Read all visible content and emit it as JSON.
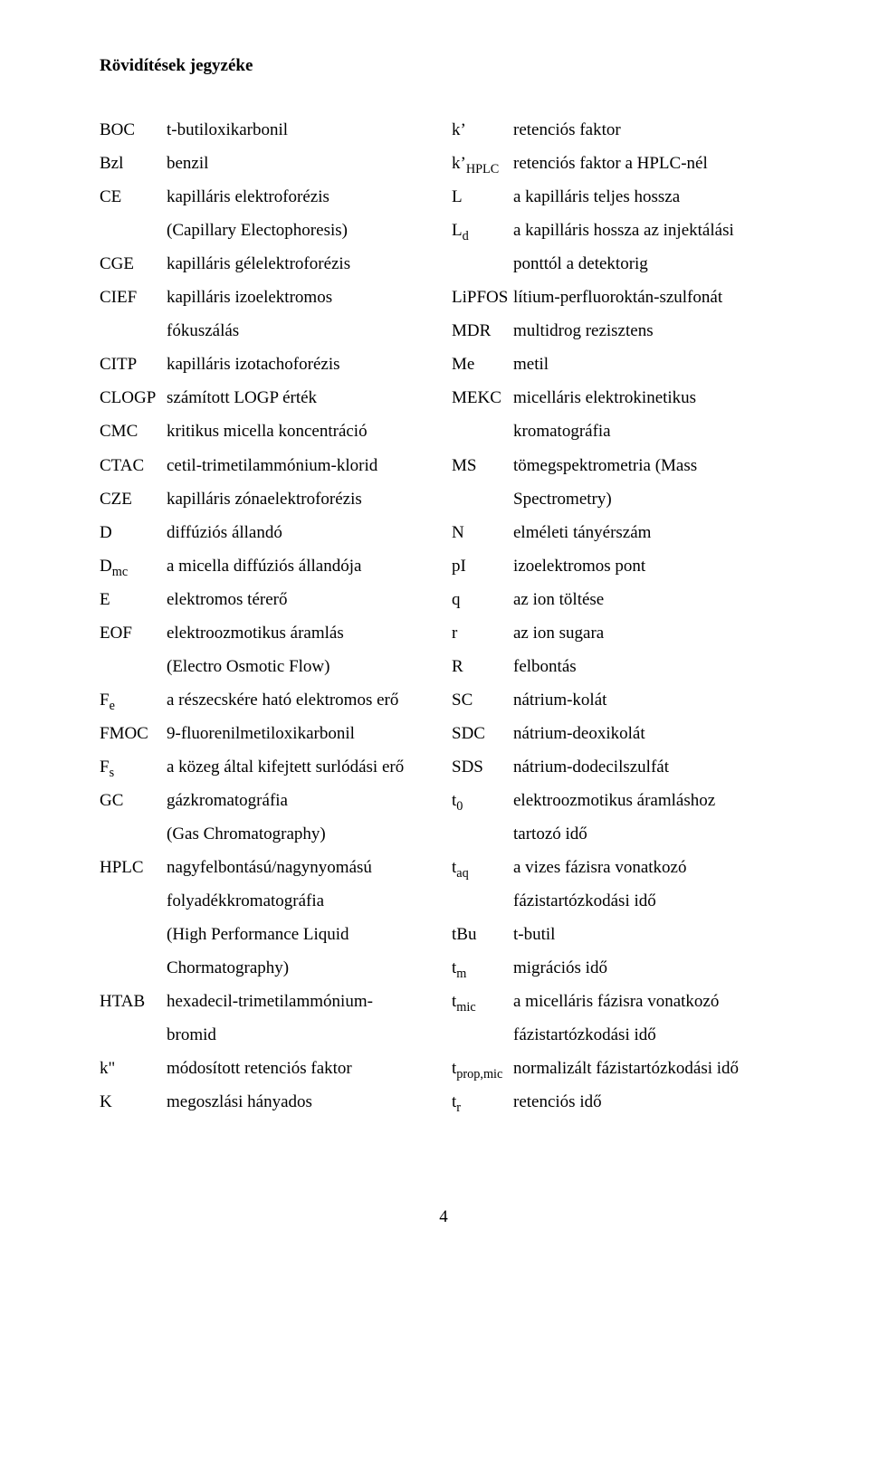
{
  "title": "Rövidítések jegyzéke",
  "page_number": "4",
  "left": {
    "r1_a": "BOC",
    "r1_d": "t-butiloxikarbonil",
    "r2_a": "Bzl",
    "r2_d": "benzil",
    "r3_a": "CE",
    "r3_d": "kapilláris elektroforézis",
    "r4_d": "(Capillary Electophoresis)",
    "r5_a": "CGE",
    "r5_d": "kapilláris gélelektroforézis",
    "r6_a": "CIEF",
    "r6_d": "kapilláris izoelektromos",
    "r7_d": "fókuszálás",
    "r8_a": "CITP",
    "r8_d": "kapilláris izotachoforézis",
    "r9_a": "CLOGP",
    "r9_d": "számított LOGP érték",
    "r10_a": "CMC",
    "r10_d": "kritikus micella koncentráció",
    "r11_a": "CTAC",
    "r11_d": "cetil-trimetilammónium-klorid",
    "r12_a": "CZE",
    "r12_d": "kapilláris zónaelektroforézis",
    "r13_a": "D",
    "r13_d": "diffúziós állandó",
    "r14_a_pre": "D",
    "r14_a_sub": "mc",
    "r14_d": "a micella diffúziós állandója",
    "r15_a": "E",
    "r15_d": "elektromos térerő",
    "r16_a": "EOF",
    "r16_d": "elektroozmotikus áramlás",
    "r17_d": "(Electro Osmotic Flow)",
    "r18_a_pre": "F",
    "r18_a_sub": "e",
    "r18_d": "a részecskére ható elektromos erő",
    "r19_a": "FMOC",
    "r19_d": "9-fluorenilmetiloxikarbonil",
    "r20_a_pre": "F",
    "r20_a_sub": "s",
    "r20_d": "a közeg által kifejtett surlódási erő",
    "r21_a": "GC",
    "r21_d": "gázkromatográfia",
    "r22_d": "(Gas Chromatography)",
    "r23_a": "HPLC",
    "r23_d": "nagyfelbontású/nagynyomású",
    "r24_d": "folyadékkromatográfia",
    "r25_d": "(High Performance Liquid",
    "r26_d": "Chormatography)",
    "r27_a": "HTAB",
    "r27_d": "hexadecil-trimetilammónium-",
    "r28_d": "bromid",
    "r29_a": "k\"",
    "r29_d": "módosított retenciós faktor",
    "r30_a": "K",
    "r30_d": "megoszlási hányados"
  },
  "right": {
    "r1_a": "k’",
    "r1_d": "retenciós faktor",
    "r2_a_pre": "k’",
    "r2_a_sub": "HPLC",
    "r2_d": "retenciós faktor a HPLC-nél",
    "r3_a": "L",
    "r3_d": "a kapilláris teljes hossza",
    "r4_a_pre": "L",
    "r4_a_sub": "d",
    "r4_d": "a kapilláris hossza az injektálási",
    "r5_d": "ponttól a detektorig",
    "r6_a": "LiPFOS",
    "r6_d": "lítium-perfluoroktán-szulfonát",
    "r7_a": "MDR",
    "r7_d": "multidrog rezisztens",
    "r8_a": "Me",
    "r8_d": "metil",
    "r9_a": "MEKC",
    "r9_d": "micelláris elektrokinetikus",
    "r10_d": "kromatográfia",
    "r11_a": "MS",
    "r11_d": "tömegspektrometria (Mass",
    "r12_d": "Spectrometry)",
    "r13_a": "N",
    "r13_d": "elméleti tányérszám",
    "r14_a": "pI",
    "r14_d": "izoelektromos pont",
    "r15_a": "q",
    "r15_d": "az ion töltése",
    "r16_a": "r",
    "r16_d": "az ion sugara",
    "r17_a": "R",
    "r17_d": "felbontás",
    "r18_a": "SC",
    "r18_d": "nátrium-kolát",
    "r19_a": "SDC",
    "r19_d": "nátrium-deoxikolát",
    "r20_a": "SDS",
    "r20_d": "nátrium-dodecilszulfát",
    "r21_a_pre": "t",
    "r21_a_sub": "0",
    "r21_d": "elektroozmotikus áramláshoz",
    "r22_d": "tartozó idő",
    "r23_a_pre": "t",
    "r23_a_sub": "aq",
    "r23_d": "a vizes fázisra vonatkozó",
    "r24_d": "fázistartózkodási idő",
    "r25_a": "tBu",
    "r25_d": "t-butil",
    "r26_a_pre": "t",
    "r26_a_sub": "m",
    "r26_d": "migrációs idő",
    "r27_a_pre": "t",
    "r27_a_sub": "mic",
    "r27_d": "a micelláris fázisra vonatkozó",
    "r28_d": "fázistartózkodási idő",
    "r29_a_pre": "t",
    "r29_a_sub": "prop,mic",
    "r29_d": "normalizált fázistartózkodási idő",
    "r30_a_pre": "t",
    "r30_a_sub": "r",
    "r30_d": "retenciós idő"
  }
}
